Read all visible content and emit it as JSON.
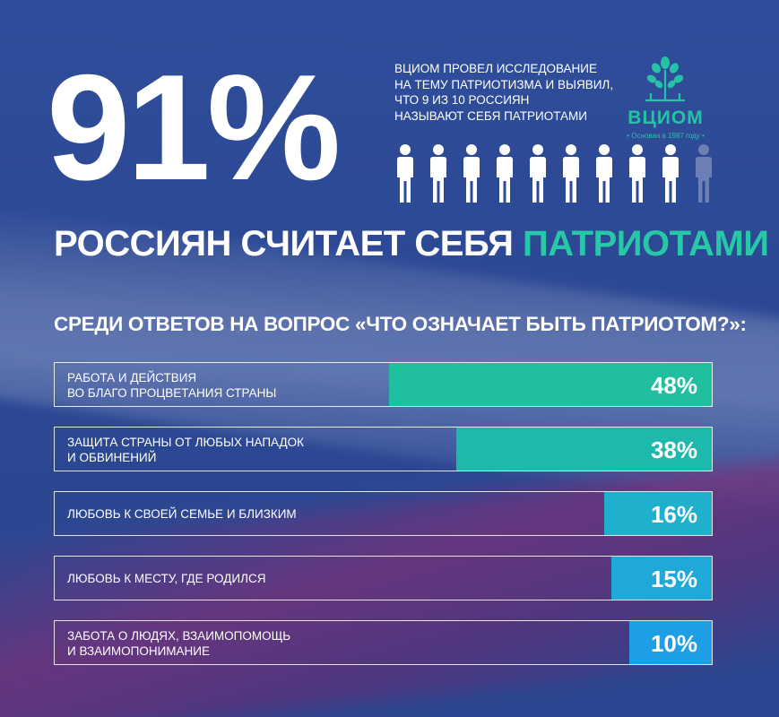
{
  "big_percent": "91%",
  "intro_lines": [
    "ВЦИОМ ПРОВЕЛ ИССЛЕДОВАНИЕ",
    "НА ТЕМУ ПАТРИОТИЗМА И ВЫЯВИЛ,",
    "ЧТО 9 ИЗ 10 РОССИЯН",
    "НАЗЫВАЮТ СЕБЯ ПАТРИОТАМИ"
  ],
  "logo": {
    "name": "ВЦИОМ",
    "tagline": "• Основан в 1987 году •",
    "icon": "tree-icon"
  },
  "people": {
    "filled": 9,
    "total": 10,
    "icon": "person-icon",
    "filled_color": "#ffffff",
    "empty_color": "#6d7fb4"
  },
  "headline": {
    "text": "РОССИЯН СЧИТАЕТ СЕБЯ",
    "accent": "ПАТРИОТАМИ",
    "accent_color": "#27c7a7"
  },
  "question": "СРЕДИ ОТВЕТОВ НА ВОПРОС «ЧТО ОЗНАЧАЕТ БЫТЬ ПАТРИОТОМ?»:",
  "colors": {
    "background": "#2d4a95",
    "teal": "#1fbfa0",
    "teal_mid": "#1cb8b0",
    "cyan": "#1fa9d8",
    "blue": "#1e9ee4"
  },
  "chart_data": {
    "type": "bar",
    "orientation": "horizontal",
    "xlim": [
      0,
      100
    ],
    "categories": [
      [
        "РАБОТА И ДЕЙСТВИЯ",
        "ВО БЛАГО ПРОЦВЕТАНИЯ СТРАНЫ"
      ],
      [
        "ЗАЩИТА СТРАНЫ ОТ ЛЮБЫХ НАПАДОК",
        "И ОБВИНЕНИЙ"
      ],
      [
        "ЛЮБОВЬ К СВОЕЙ СЕМЬЕ И БЛИЗКИМ"
      ],
      [
        "ЛЮБОВЬ К МЕСТУ, ГДЕ РОДИЛСЯ"
      ],
      [
        "ЗАБОТА О ЛЮДЯХ, ВЗАИМОПОМОЩЬ",
        "И ВЗАИМОПОНИМАНИЕ"
      ]
    ],
    "values": [
      48,
      38,
      16,
      15,
      10
    ],
    "value_labels": [
      "48%",
      "38%",
      "16%",
      "15%",
      "10%"
    ],
    "bar_colors": [
      "#1fbfa0",
      "#1db9ad",
      "#1fb0cd",
      "#1fa9d8",
      "#1e9ee4"
    ]
  }
}
